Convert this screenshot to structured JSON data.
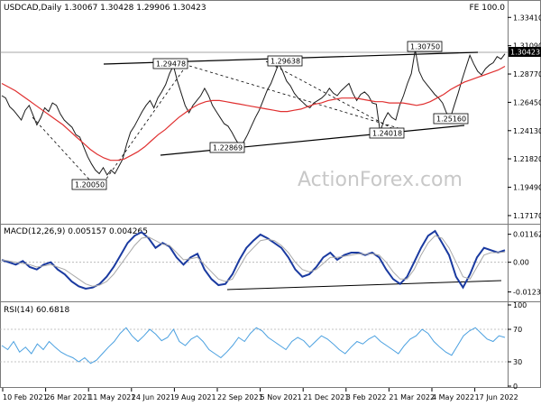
{
  "header": {
    "title": "USDCAD,Daily  1.30067 1.30428 1.29906 1.30423",
    "fe_label": "FE 100.0"
  },
  "watermark": "ActionForex.com",
  "colors": {
    "price": "#1a1a1a",
    "ema": "#e03030",
    "macd": "#1a3aa0",
    "signal": "#a8a8a8",
    "rsi": "#4aa0e0",
    "current_price_box": "#000000"
  },
  "chart_data": [
    {
      "type": "line",
      "panel": "price",
      "x_labels": [
        "10 Feb 2021",
        "26 Mar 2021",
        "11 May 2021",
        "24 Jun 2021",
        "9 Aug 2021",
        "22 Sep 2021",
        "5 Nov 2021",
        "21 Dec 2021",
        "3 Feb 2022",
        "21 Mar 2022",
        "4 May 2022",
        "17 Jun 2022"
      ],
      "y_ticks": [
        1.1717,
        1.1949,
        1.2182,
        1.2413,
        1.2645,
        1.2877,
        1.3109,
        1.3341
      ],
      "y_tick_labels": [
        "1.17170",
        "1.19490",
        "1.21820",
        "1.24130",
        "1.26450",
        "1.28770",
        "1.31090",
        "1.33410"
      ],
      "ylim": [
        1.165,
        1.338
      ],
      "series": [
        {
          "role": "price",
          "values": [
            1.27,
            1.268,
            1.261,
            1.258,
            1.254,
            1.25,
            1.258,
            1.262,
            1.254,
            1.246,
            1.252,
            1.26,
            1.257,
            1.264,
            1.262,
            1.255,
            1.25,
            1.247,
            1.244,
            1.238,
            1.236,
            1.228,
            1.22,
            1.214,
            1.209,
            1.206,
            1.211,
            1.205,
            1.209,
            1.206,
            1.212,
            1.218,
            1.23,
            1.24,
            1.245,
            1.251,
            1.257,
            1.262,
            1.266,
            1.26,
            1.268,
            1.273,
            1.279,
            1.288,
            1.2947,
            1.282,
            1.272,
            1.262,
            1.256,
            1.262,
            1.266,
            1.27,
            1.276,
            1.27,
            1.262,
            1.257,
            1.252,
            1.247,
            1.245,
            1.24,
            1.234,
            1.2287,
            1.232,
            1.238,
            1.245,
            1.252,
            1.258,
            1.266,
            1.274,
            1.28,
            1.288,
            1.2963,
            1.29,
            1.282,
            1.278,
            1.272,
            1.268,
            1.265,
            1.262,
            1.26,
            1.264,
            1.266,
            1.268,
            1.271,
            1.276,
            1.272,
            1.27,
            1.274,
            1.277,
            1.28,
            1.272,
            1.266,
            1.271,
            1.273,
            1.27,
            1.264,
            1.263,
            1.2402,
            1.25,
            1.256,
            1.252,
            1.25,
            1.262,
            1.27,
            1.28,
            1.288,
            1.3075,
            1.29,
            1.283,
            1.279,
            1.275,
            1.271,
            1.268,
            1.264,
            1.256,
            1.2516,
            1.262,
            1.272,
            1.283,
            1.293,
            1.303,
            1.296,
            1.29,
            1.287,
            1.292,
            1.295,
            1.297,
            1.302,
            1.3,
            1.3042
          ]
        },
        {
          "role": "ema",
          "values": [
            1.28,
            1.277,
            1.274,
            1.27,
            1.266,
            1.262,
            1.258,
            1.254,
            1.25,
            1.246,
            1.241,
            1.236,
            1.231,
            1.226,
            1.222,
            1.219,
            1.217,
            1.217,
            1.218,
            1.221,
            1.224,
            1.228,
            1.233,
            1.238,
            1.242,
            1.247,
            1.252,
            1.256,
            1.26,
            1.263,
            1.265,
            1.266,
            1.266,
            1.265,
            1.264,
            1.263,
            1.262,
            1.261,
            1.26,
            1.259,
            1.258,
            1.257,
            1.257,
            1.258,
            1.259,
            1.261,
            1.263,
            1.264,
            1.266,
            1.267,
            1.268,
            1.268,
            1.268,
            1.267,
            1.266,
            1.265,
            1.265,
            1.264,
            1.264,
            1.264,
            1.263,
            1.262,
            1.263,
            1.265,
            1.268,
            1.271,
            1.275,
            1.278,
            1.281,
            1.283,
            1.285,
            1.287,
            1.289,
            1.291,
            1.294
          ]
        }
      ],
      "annotations": [
        "1.20050",
        "1.29478",
        "1.22869",
        "1.29638",
        "1.24018",
        "1.30750",
        "1.25160"
      ],
      "current_price": "1.30423"
    },
    {
      "type": "line",
      "panel": "macd",
      "label": "MACD(12,26,9) 0.005157 0.004265",
      "y_ticks": [
        0.01163,
        0.0,
        -0.01235
      ],
      "y_tick_labels": [
        "0.011629",
        "0.00",
        "-0.012348"
      ],
      "ylim": [
        -0.0155,
        0.0145
      ],
      "series": [
        {
          "role": "macd",
          "values": [
            0.001,
            0.0,
            -0.001,
            0.0005,
            -0.002,
            -0.003,
            -0.001,
            0.0,
            -0.003,
            -0.005,
            -0.008,
            -0.01,
            -0.011,
            -0.0105,
            -0.009,
            -0.006,
            -0.002,
            0.003,
            0.008,
            0.011,
            0.0125,
            0.01,
            0.006,
            0.008,
            0.0065,
            0.002,
            -0.001,
            0.002,
            0.0035,
            -0.003,
            -0.007,
            -0.0095,
            -0.009,
            -0.005,
            0.001,
            0.006,
            0.009,
            0.0115,
            0.01,
            0.008,
            0.006,
            0.002,
            -0.003,
            -0.006,
            -0.005,
            -0.002,
            0.002,
            0.004,
            0.001,
            0.003,
            0.004,
            0.004,
            0.003,
            0.004,
            0.002,
            -0.003,
            -0.007,
            -0.009,
            -0.006,
            0.0,
            0.006,
            0.011,
            0.013,
            0.008,
            0.003,
            -0.006,
            -0.0105,
            -0.005,
            0.002,
            0.006,
            0.005,
            0.004,
            0.005
          ]
        },
        {
          "role": "signal",
          "values": [
            0.001,
            0.0005,
            0.0,
            -0.0005,
            -0.001,
            -0.002,
            -0.0015,
            -0.001,
            -0.002,
            -0.003,
            -0.005,
            -0.007,
            -0.009,
            -0.01,
            -0.0095,
            -0.008,
            -0.005,
            -0.001,
            0.003,
            0.007,
            0.01,
            0.0105,
            0.009,
            0.0075,
            0.007,
            0.004,
            0.001,
            0.0015,
            0.002,
            -0.001,
            -0.004,
            -0.007,
            -0.008,
            -0.007,
            -0.002,
            0.003,
            0.006,
            0.009,
            0.0095,
            0.009,
            0.007,
            0.004,
            0.0,
            -0.003,
            -0.004,
            -0.003,
            -0.0005,
            0.002,
            0.002,
            0.0025,
            0.003,
            0.0035,
            0.0033,
            0.0035,
            0.003,
            0.0,
            -0.004,
            -0.007,
            -0.007,
            -0.003,
            0.003,
            0.008,
            0.011,
            0.01,
            0.006,
            0.0,
            -0.006,
            -0.007,
            -0.002,
            0.003,
            0.004,
            0.004,
            0.0043
          ]
        }
      ]
    },
    {
      "type": "line",
      "panel": "rsi",
      "label": "RSI(14) 60.6818",
      "y_ticks": [
        100,
        70,
        30,
        0
      ],
      "y_tick_labels": [
        "100",
        "70",
        "30",
        "0"
      ],
      "ylim": [
        0,
        100
      ],
      "series": [
        {
          "role": "rsi",
          "values": [
            50,
            45,
            55,
            42,
            48,
            40,
            52,
            45,
            55,
            48,
            42,
            38,
            35,
            30,
            35,
            28,
            32,
            40,
            48,
            55,
            65,
            72,
            62,
            55,
            62,
            70,
            64,
            56,
            60,
            70,
            55,
            50,
            58,
            62,
            55,
            45,
            40,
            35,
            42,
            50,
            60,
            55,
            65,
            72,
            68,
            60,
            55,
            50,
            45,
            55,
            60,
            56,
            48,
            55,
            62,
            58,
            52,
            45,
            40,
            48,
            55,
            52,
            58,
            62,
            55,
            50,
            45,
            40,
            50,
            58,
            62,
            70,
            65,
            55,
            48,
            42,
            38,
            50,
            62,
            68,
            72,
            65,
            58,
            55,
            62,
            60
          ]
        }
      ]
    }
  ]
}
